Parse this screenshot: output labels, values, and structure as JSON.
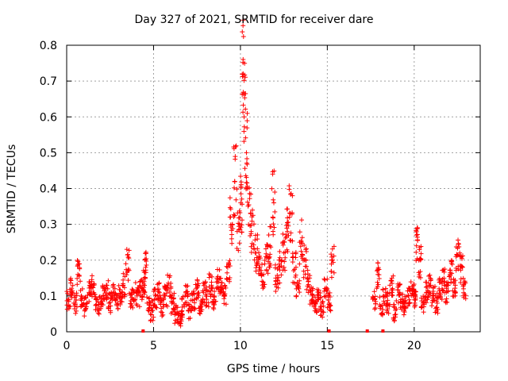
{
  "chart_data": {
    "type": "scatter",
    "title": "Day 327 of 2021, SRMTID for receiver dare",
    "xlabel": "GPS time / hours",
    "ylabel": "SRMTID / TECUs",
    "xlim": [
      0,
      23.8
    ],
    "ylim": [
      0,
      0.8
    ],
    "xticks": [
      0,
      5,
      10,
      15,
      20
    ],
    "yticks": [
      0,
      0.1,
      0.2,
      0.3,
      0.4,
      0.5,
      0.6,
      0.7,
      0.8
    ],
    "ytick_labels": [
      "0",
      "0.1",
      "0.2",
      "0.3",
      "0.4",
      "0.5",
      "0.6",
      "0.7",
      "0.8"
    ],
    "grid": true,
    "marker": "+",
    "series": [
      {
        "name": "SRMTID",
        "color": "#ff0000",
        "x": [
          0.0,
          0.2,
          0.4,
          0.6,
          0.8,
          1.0,
          1.2,
          1.4,
          1.6,
          1.8,
          2.0,
          2.2,
          2.4,
          2.6,
          2.8,
          3.0,
          3.2,
          3.4,
          3.6,
          3.8,
          4.0,
          4.2,
          4.4,
          4.5,
          4.6,
          4.8,
          5.0,
          5.2,
          5.4,
          5.6,
          5.8,
          6.0,
          6.2,
          6.4,
          6.6,
          6.8,
          7.0,
          7.2,
          7.4,
          7.6,
          7.8,
          8.0,
          8.2,
          8.4,
          8.6,
          8.8,
          9.0,
          9.2,
          9.4,
          9.6,
          9.8,
          10.0,
          10.1,
          10.2,
          10.3,
          10.4,
          10.6,
          10.8,
          11.0,
          11.2,
          11.4,
          11.6,
          11.8,
          12.0,
          12.2,
          12.4,
          12.6,
          12.8,
          13.0,
          13.2,
          13.4,
          13.6,
          13.8,
          14.0,
          14.2,
          14.4,
          14.6,
          14.8,
          15.0,
          15.2,
          17.6,
          17.8,
          18.0,
          18.2,
          18.4,
          18.6,
          18.8,
          19.0,
          19.2,
          19.4,
          19.6,
          19.8,
          20.0,
          20.1,
          20.2,
          20.4,
          20.6,
          20.8,
          21.0,
          21.2,
          21.4,
          21.6,
          21.8,
          22.0,
          22.2,
          22.4,
          22.6,
          22.8
        ],
        "y": [
          0.09,
          0.12,
          0.08,
          0.16,
          0.1,
          0.07,
          0.11,
          0.13,
          0.09,
          0.07,
          0.1,
          0.12,
          0.08,
          0.11,
          0.09,
          0.1,
          0.13,
          0.19,
          0.09,
          0.11,
          0.1,
          0.12,
          0.14,
          0.18,
          0.08,
          0.06,
          0.09,
          0.11,
          0.07,
          0.1,
          0.13,
          0.08,
          0.05,
          0.03,
          0.07,
          0.1,
          0.06,
          0.09,
          0.12,
          0.08,
          0.11,
          0.1,
          0.13,
          0.09,
          0.15,
          0.12,
          0.1,
          0.18,
          0.3,
          0.42,
          0.28,
          0.36,
          0.72,
          0.6,
          0.5,
          0.33,
          0.28,
          0.22,
          0.19,
          0.16,
          0.21,
          0.24,
          0.36,
          0.15,
          0.18,
          0.22,
          0.28,
          0.33,
          0.18,
          0.12,
          0.25,
          0.2,
          0.14,
          0.1,
          0.08,
          0.09,
          0.07,
          0.12,
          0.08,
          0.2,
          0.09,
          0.16,
          0.07,
          0.1,
          0.08,
          0.13,
          0.06,
          0.11,
          0.09,
          0.07,
          0.1,
          0.12,
          0.09,
          0.24,
          0.2,
          0.08,
          0.11,
          0.13,
          0.1,
          0.08,
          0.12,
          0.14,
          0.11,
          0.16,
          0.13,
          0.21,
          0.18,
          0.12
        ],
        "isolated_points": [
          {
            "x": 4.4,
            "y": 0.0
          },
          {
            "x": 15.1,
            "y": 0.0
          },
          {
            "x": 17.3,
            "y": 0.0
          },
          {
            "x": 18.2,
            "y": 0.0
          }
        ]
      }
    ]
  }
}
